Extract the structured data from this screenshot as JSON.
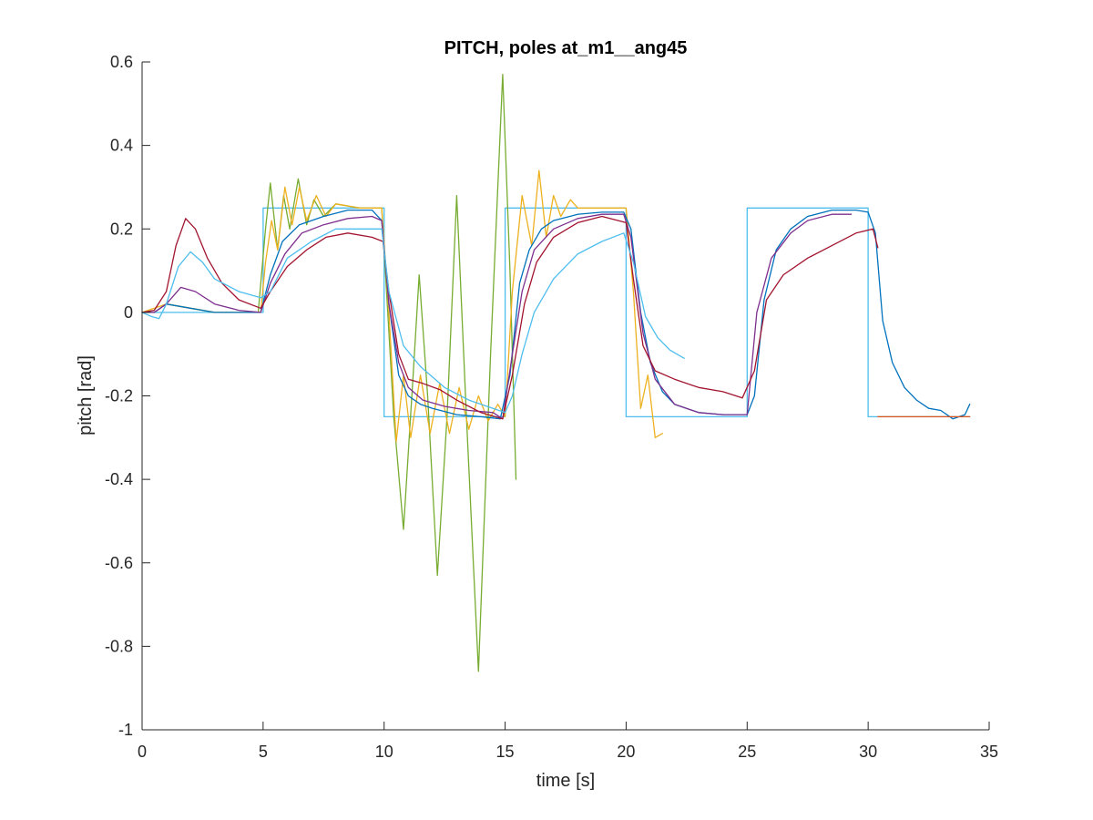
{
  "chart_data": {
    "type": "line",
    "title": "PITCH, poles at_m1__ang45",
    "xlabel": "time [s]",
    "ylabel": "pitch [rad]",
    "xlim": [
      0,
      35
    ],
    "ylim": [
      -1,
      0.6
    ],
    "xticks": [
      0,
      5,
      10,
      15,
      20,
      25,
      30,
      35
    ],
    "xtick_labels": [
      "0",
      "5",
      "10",
      "15",
      "20",
      "25",
      "30",
      "35"
    ],
    "yticks": [
      -1,
      -0.8,
      -0.6,
      -0.4,
      -0.2,
      0,
      0.2,
      0.4,
      0.6
    ],
    "ytick_labels": [
      "-1",
      "-0.8",
      "-0.6",
      "-0.4",
      "-0.2",
      "0",
      "0.2",
      "0.4",
      "0.6"
    ],
    "grid": false,
    "legend": "none",
    "series": [
      {
        "color": "#4DBEEE",
        "role": "reference",
        "x": [
          0,
          5,
          5,
          10,
          10,
          15,
          15,
          20,
          20,
          25,
          25,
          30,
          30,
          34.2
        ],
        "y": [
          0,
          0,
          0.25,
          0.25,
          -0.25,
          -0.25,
          0.25,
          0.25,
          -0.25,
          -0.25,
          0.25,
          0.25,
          -0.25,
          -0.25
        ]
      },
      {
        "color": "#77AC30",
        "x": [
          0,
          0.5,
          1,
          2,
          3,
          4,
          4.8,
          5.1,
          5.3,
          5.6,
          5.85,
          6.1,
          6.45,
          6.8,
          7.1,
          7.5,
          8,
          9,
          9.9,
          10.1,
          10.4,
          10.8,
          11.2,
          11.45,
          11.8,
          12.2,
          12.6,
          13.0,
          13.4,
          13.9,
          14.4,
          14.9,
          15.2,
          15.45
        ],
        "y": [
          0,
          0,
          0.02,
          0.01,
          0,
          0,
          0,
          0.2,
          0.31,
          0.15,
          0.28,
          0.2,
          0.32,
          0.21,
          0.27,
          0.23,
          0.26,
          0.25,
          0.25,
          0.05,
          -0.25,
          -0.52,
          -0.15,
          0.09,
          -0.2,
          -0.63,
          -0.25,
          0.28,
          -0.25,
          -0.86,
          -0.1,
          0.57,
          0.1,
          -0.4
        ]
      },
      {
        "color": "#EDB120",
        "x": [
          0,
          1,
          2,
          3,
          4,
          4.9,
          5.1,
          5.35,
          5.6,
          5.9,
          6.2,
          6.5,
          6.8,
          7.2,
          7.6,
          8,
          9,
          9.9,
          10.2,
          10.5,
          10.8,
          11.1,
          11.5,
          11.9,
          12.3,
          12.7,
          13.1,
          13.5,
          13.9,
          14.3,
          14.7,
          15.0,
          15.3,
          15.7,
          16.1,
          16.4,
          16.7,
          17.0,
          17.3,
          17.7,
          18,
          19,
          20,
          20.3,
          20.6,
          20.9,
          21.2,
          21.5
        ],
        "y": [
          0,
          0.02,
          0.01,
          0,
          0,
          0,
          0.12,
          0.22,
          0.15,
          0.3,
          0.21,
          0.3,
          0.22,
          0.28,
          0.23,
          0.26,
          0.25,
          0.25,
          0,
          -0.31,
          -0.15,
          -0.3,
          -0.15,
          -0.29,
          -0.17,
          -0.29,
          -0.18,
          -0.28,
          -0.2,
          -0.26,
          -0.22,
          -0.25,
          0.05,
          0.28,
          0.16,
          0.34,
          0.18,
          0.28,
          0.23,
          0.27,
          0.25,
          0.25,
          0.25,
          0.05,
          -0.23,
          -0.15,
          -0.3,
          -0.29
        ]
      },
      {
        "color": "#0072BD",
        "x": [
          0,
          0.5,
          1,
          2,
          3,
          4,
          4.9,
          5.3,
          5.8,
          6.5,
          7.5,
          8.5,
          9.5,
          9.9,
          10.2,
          10.6,
          11,
          11.5,
          12,
          13,
          14,
          14.8,
          15.2,
          15.6,
          16,
          16.5,
          17,
          18,
          19,
          19.9,
          20.2,
          20.6,
          21,
          21.5,
          22,
          23,
          24,
          25,
          25.3,
          25.7,
          26.2,
          26.8,
          27.5,
          28.5,
          29.5,
          30,
          30.3,
          30.6,
          31,
          31.5,
          32,
          32.5,
          33,
          33.5,
          34,
          34.2
        ],
        "y": [
          0,
          0,
          0.02,
          0.01,
          0,
          0,
          0,
          0.09,
          0.17,
          0.21,
          0.23,
          0.245,
          0.245,
          0.22,
          0.02,
          -0.15,
          -0.2,
          -0.22,
          -0.23,
          -0.245,
          -0.25,
          -0.255,
          -0.15,
          0.07,
          0.15,
          0.2,
          0.22,
          0.235,
          0.24,
          0.24,
          0.2,
          0,
          -0.12,
          -0.19,
          -0.22,
          -0.24,
          -0.245,
          -0.245,
          -0.2,
          0.03,
          0.15,
          0.2,
          0.23,
          0.245,
          0.245,
          0.24,
          0.19,
          -0.02,
          -0.12,
          -0.18,
          -0.21,
          -0.23,
          -0.235,
          -0.255,
          -0.245,
          -0.22
        ]
      },
      {
        "color": "#7E2F8E",
        "x": [
          0,
          0.5,
          1,
          1.6,
          2.2,
          3,
          4,
          4.9,
          5.3,
          5.9,
          6.6,
          7.5,
          8.5,
          9.5,
          9.9,
          10.2,
          10.6,
          11,
          11.6,
          12.5,
          13.5,
          14.5,
          14.9,
          15.3,
          15.7,
          16.2,
          17,
          18,
          19,
          19.9,
          20.2,
          20.7,
          21.2,
          22,
          23,
          24,
          25,
          25.4,
          26,
          26.8,
          27.5,
          28.5,
          29.3
        ],
        "y": [
          0,
          0,
          0.02,
          0.06,
          0.05,
          0.02,
          0.005,
          0,
          0.07,
          0.14,
          0.19,
          0.21,
          0.225,
          0.23,
          0.22,
          0.02,
          -0.12,
          -0.18,
          -0.21,
          -0.225,
          -0.235,
          -0.24,
          -0.255,
          -0.1,
          0.05,
          0.15,
          0.2,
          0.225,
          0.235,
          0.235,
          0.18,
          -0.05,
          -0.16,
          -0.22,
          -0.24,
          -0.245,
          -0.245,
          0,
          0.13,
          0.19,
          0.22,
          0.235,
          0.235
        ]
      },
      {
        "color": "#A2142F",
        "x": [
          0,
          0.5,
          1,
          1.4,
          1.8,
          2.2,
          2.7,
          3.3,
          4,
          4.9,
          5.3,
          6,
          6.8,
          7.6,
          8.5,
          9.5,
          9.95,
          10.2,
          10.6,
          11,
          11.6,
          12.3,
          13,
          14,
          14.9,
          15.3,
          15.8,
          16.3,
          17,
          18,
          19,
          20,
          20.3,
          20.7,
          21.2,
          22,
          23,
          24,
          24.8,
          25.3,
          25.8,
          26.5,
          27.5,
          28.5,
          29.5,
          30.2,
          30.4
        ],
        "y": [
          0,
          0.005,
          0.05,
          0.16,
          0.225,
          0.2,
          0.13,
          0.07,
          0.03,
          0.01,
          0.05,
          0.11,
          0.15,
          0.18,
          0.19,
          0.18,
          0.17,
          0.05,
          -0.1,
          -0.16,
          -0.17,
          -0.185,
          -0.21,
          -0.24,
          -0.255,
          -0.15,
          0.02,
          0.12,
          0.18,
          0.215,
          0.23,
          0.215,
          0.08,
          -0.08,
          -0.14,
          -0.16,
          -0.18,
          -0.19,
          -0.205,
          -0.14,
          0.03,
          0.09,
          0.13,
          0.16,
          0.19,
          0.2,
          0.155
        ]
      },
      {
        "color": "#4DBEEE",
        "x": [
          0,
          0.4,
          0.7,
          1,
          1.5,
          2,
          2.5,
          3,
          4,
          4.9,
          5.3,
          6,
          7,
          8,
          9,
          9.9,
          10.2,
          10.8,
          11.5,
          12.5,
          13.5,
          14.5,
          15,
          15.3,
          15.7,
          16.2,
          17,
          18,
          19,
          19.9,
          20.3,
          20.8,
          21.3,
          21.8,
          22.4
        ],
        "y": [
          0,
          -0.01,
          -0.015,
          0.02,
          0.11,
          0.145,
          0.12,
          0.08,
          0.05,
          0.035,
          0.05,
          0.13,
          0.17,
          0.2,
          0.2,
          0.2,
          0.05,
          -0.08,
          -0.13,
          -0.18,
          -0.21,
          -0.23,
          -0.24,
          -0.2,
          -0.1,
          0,
          0.08,
          0.14,
          0.17,
          0.19,
          0.12,
          -0.01,
          -0.06,
          -0.09,
          -0.11
        ]
      },
      {
        "color": "#D95319",
        "x": [
          30.4,
          34.2
        ],
        "y": [
          -0.25,
          -0.25
        ]
      }
    ]
  }
}
